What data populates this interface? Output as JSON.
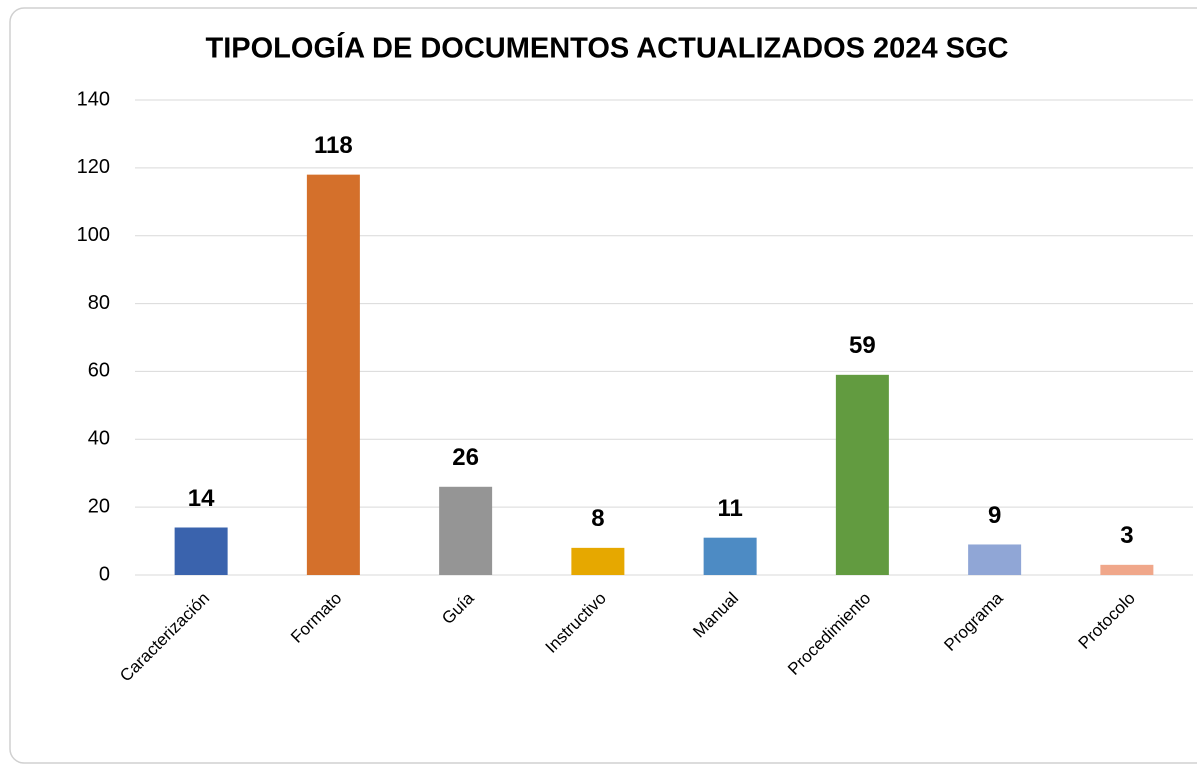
{
  "chart_data": {
    "type": "bar",
    "title": "TIPOLOGÍA DE DOCUMENTOS ACTUALIZADOS 2024 SGC",
    "categories": [
      "Caracterización",
      "Formato",
      "Guía",
      "Instructivo",
      "Manual",
      "Procedimiento",
      "Programa",
      "Protocolo"
    ],
    "values": [
      14,
      118,
      26,
      8,
      11,
      59,
      9,
      3
    ],
    "colors": [
      "#3a63ad",
      "#d4702b",
      "#959595",
      "#e6a800",
      "#4d8bc4",
      "#629b40",
      "#90a6d6",
      "#f0a78a"
    ],
    "ylim": [
      0,
      140
    ],
    "yticks": [
      0,
      20,
      40,
      60,
      80,
      100,
      120,
      140
    ],
    "grid": true
  }
}
